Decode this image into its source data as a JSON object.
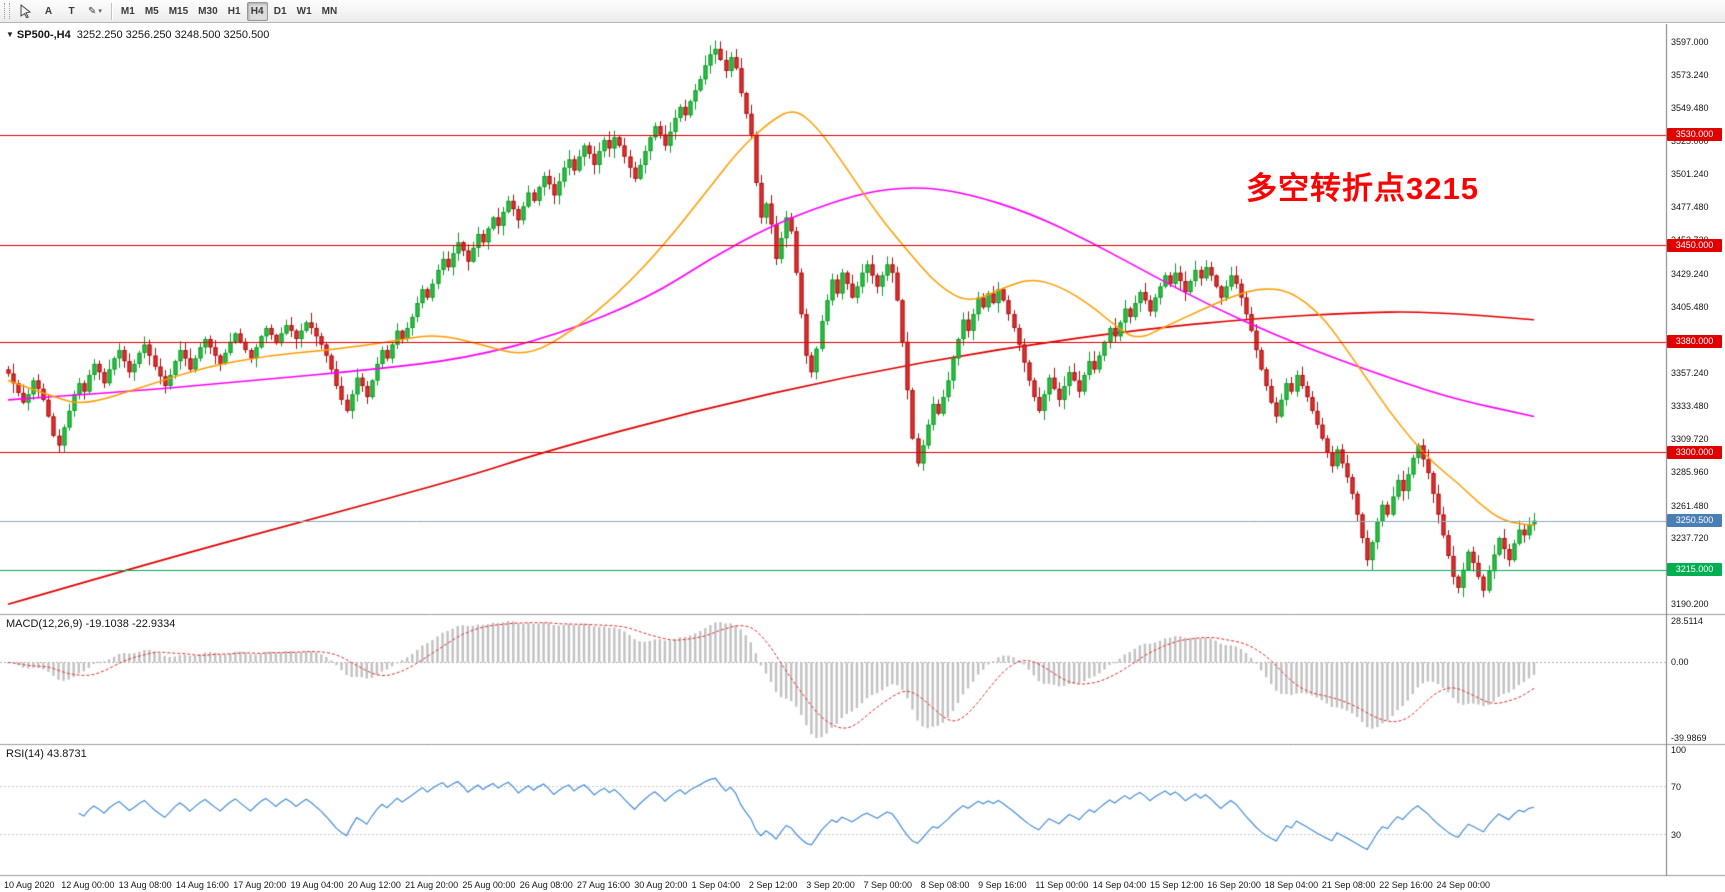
{
  "toolbar": {
    "text_tool_label": "A",
    "label_tool_label": "T",
    "draw_tool_glyph": "✎",
    "dropdown_caret": "▾",
    "timeframes": [
      "M1",
      "M5",
      "M15",
      "M30",
      "H1",
      "H4",
      "D1",
      "W1",
      "MN"
    ],
    "active_timeframe": "H4"
  },
  "chart": {
    "title_marker": "▼",
    "symbol_period": "SP500-,H4",
    "ohlc_text": "3252.250 3256.250 3248.500 3250.500",
    "annotation": {
      "text": "多空转折点3215",
      "color": "#ff0000"
    }
  },
  "colors": {
    "up_fill": "#30c245",
    "up_edge": "#0f9c2c",
    "down_fill": "#e43030",
    "down_edge": "#a81414",
    "ma_fast": "#ff9d00",
    "ma_mid": "#ff00ff",
    "ma_slow": "#e00000",
    "hline_red": "#e00000",
    "hline_green": "#00b050",
    "price_line": "#8fa8c0",
    "price_badge": "#4a7fb5",
    "macd_hist": "#c2c2c2",
    "macd_signal": "#e03030",
    "rsi_line": "#4a90d9",
    "rsi_level": "#cccccc",
    "separator": "#9e9e9e",
    "axis_line": "#7a7a7a",
    "zero_line": "#b0b0b0"
  },
  "chart_data": {
    "type": "candlestick",
    "symbol": "SP500-",
    "period": "H4",
    "ylim": [
      3183,
      3610
    ],
    "first_open": 3360,
    "closes": [
      3357,
      3350,
      3343,
      3336,
      3342,
      3352,
      3346,
      3338,
      3326,
      3312,
      3305,
      3318,
      3330,
      3342,
      3350,
      3344,
      3356,
      3364,
      3358,
      3350,
      3360,
      3368,
      3374,
      3366,
      3358,
      3364,
      3372,
      3378,
      3370,
      3362,
      3355,
      3348,
      3356,
      3366,
      3374,
      3368,
      3360,
      3368,
      3376,
      3382,
      3376,
      3370,
      3364,
      3372,
      3380,
      3386,
      3380,
      3374,
      3368,
      3376,
      3384,
      3390,
      3385,
      3379,
      3386,
      3392,
      3388,
      3382,
      3388,
      3394,
      3390,
      3384,
      3378,
      3370,
      3360,
      3348,
      3338,
      3330,
      3342,
      3354,
      3348,
      3340,
      3352,
      3364,
      3374,
      3368,
      3378,
      3388,
      3382,
      3390,
      3398,
      3408,
      3418,
      3412,
      3422,
      3432,
      3440,
      3434,
      3444,
      3452,
      3446,
      3438,
      3448,
      3458,
      3452,
      3462,
      3470,
      3464,
      3474,
      3482,
      3476,
      3468,
      3478,
      3488,
      3482,
      3492,
      3500,
      3494,
      3486,
      3496,
      3506,
      3512,
      3504,
      3514,
      3522,
      3516,
      3508,
      3518,
      3526,
      3520,
      3528,
      3522,
      3514,
      3506,
      3498,
      3508,
      3518,
      3528,
      3536,
      3530,
      3522,
      3532,
      3542,
      3550,
      3544,
      3554,
      3562,
      3570,
      3580,
      3588,
      3592,
      3584,
      3576,
      3586,
      3578,
      3560,
      3545,
      3530,
      3495,
      3470,
      3480,
      3465,
      3440,
      3455,
      3470,
      3460,
      3430,
      3400,
      3370,
      3358,
      3375,
      3395,
      3410,
      3425,
      3415,
      3430,
      3422,
      3412,
      3420,
      3430,
      3436,
      3428,
      3420,
      3428,
      3436,
      3430,
      3410,
      3380,
      3345,
      3310,
      3292,
      3305,
      3320,
      3335,
      3328,
      3340,
      3352,
      3368,
      3382,
      3396,
      3388,
      3400,
      3412,
      3405,
      3415,
      3408,
      3418,
      3410,
      3400,
      3390,
      3378,
      3365,
      3352,
      3340,
      3330,
      3342,
      3354,
      3346,
      3338,
      3348,
      3358,
      3352,
      3344,
      3356,
      3366,
      3360,
      3370,
      3380,
      3390,
      3384,
      3394,
      3404,
      3398,
      3408,
      3416,
      3410,
      3402,
      3412,
      3420,
      3428,
      3422,
      3430,
      3424,
      3416,
      3424,
      3432,
      3426,
      3434,
      3428,
      3420,
      3412,
      3420,
      3428,
      3422,
      3412,
      3400,
      3388,
      3374,
      3360,
      3348,
      3336,
      3326,
      3338,
      3350,
      3344,
      3356,
      3348,
      3340,
      3330,
      3320,
      3310,
      3300,
      3290,
      3302,
      3292,
      3282,
      3270,
      3255,
      3238,
      3222,
      3235,
      3250,
      3262,
      3255,
      3268,
      3280,
      3272,
      3284,
      3296,
      3305,
      3295,
      3285,
      3270,
      3255,
      3240,
      3225,
      3210,
      3202,
      3215,
      3228,
      3220,
      3210,
      3200,
      3214,
      3226,
      3238,
      3230,
      3222,
      3234,
      3244,
      3240,
      3248,
      3250.5
    ],
    "ma_lines": [
      {
        "name": "fast-ma",
        "color": "#ff9d00",
        "anchors": [
          [
            0,
            3352
          ],
          [
            0.03,
            3340
          ],
          [
            0.05,
            3334
          ],
          [
            0.09,
            3348
          ],
          [
            0.13,
            3362
          ],
          [
            0.17,
            3370
          ],
          [
            0.21,
            3374
          ],
          [
            0.25,
            3380
          ],
          [
            0.28,
            3386
          ],
          [
            0.31,
            3378
          ],
          [
            0.34,
            3369
          ],
          [
            0.37,
            3388
          ],
          [
            0.4,
            3415
          ],
          [
            0.43,
            3450
          ],
          [
            0.46,
            3492
          ],
          [
            0.48,
            3520
          ],
          [
            0.5,
            3540
          ],
          [
            0.515,
            3549
          ],
          [
            0.53,
            3536
          ],
          [
            0.55,
            3505
          ],
          [
            0.57,
            3472
          ],
          [
            0.59,
            3445
          ],
          [
            0.61,
            3420
          ],
          [
            0.63,
            3408
          ],
          [
            0.65,
            3418
          ],
          [
            0.67,
            3426
          ],
          [
            0.69,
            3420
          ],
          [
            0.71,
            3406
          ],
          [
            0.725,
            3392
          ],
          [
            0.74,
            3381
          ],
          [
            0.76,
            3392
          ],
          [
            0.78,
            3402
          ],
          [
            0.8,
            3412
          ],
          [
            0.82,
            3419
          ],
          [
            0.84,
            3417
          ],
          [
            0.86,
            3400
          ],
          [
            0.875,
            3378
          ],
          [
            0.89,
            3354
          ],
          [
            0.905,
            3330
          ],
          [
            0.92,
            3309
          ],
          [
            0.935,
            3291
          ],
          [
            0.95,
            3278
          ],
          [
            0.965,
            3262
          ],
          [
            0.98,
            3250
          ],
          [
            1,
            3247
          ]
        ]
      },
      {
        "name": "mid-ma",
        "color": "#ff00ff",
        "anchors": [
          [
            0,
            3338
          ],
          [
            0.08,
            3344
          ],
          [
            0.16,
            3352
          ],
          [
            0.24,
            3360
          ],
          [
            0.3,
            3368
          ],
          [
            0.36,
            3385
          ],
          [
            0.42,
            3412
          ],
          [
            0.46,
            3440
          ],
          [
            0.5,
            3464
          ],
          [
            0.54,
            3481
          ],
          [
            0.57,
            3490
          ],
          [
            0.6,
            3492
          ],
          [
            0.63,
            3487
          ],
          [
            0.67,
            3473
          ],
          [
            0.71,
            3452
          ],
          [
            0.75,
            3428
          ],
          [
            0.79,
            3405
          ],
          [
            0.83,
            3385
          ],
          [
            0.87,
            3368
          ],
          [
            0.91,
            3352
          ],
          [
            0.95,
            3338
          ],
          [
            1,
            3326
          ]
        ]
      },
      {
        "name": "slow-ma",
        "color": "#e00000",
        "anchors": [
          [
            0,
            3190
          ],
          [
            0.1,
            3222
          ],
          [
            0.2,
            3252
          ],
          [
            0.3,
            3282
          ],
          [
            0.35,
            3300
          ],
          [
            0.45,
            3330
          ],
          [
            0.55,
            3355
          ],
          [
            0.65,
            3375
          ],
          [
            0.75,
            3390
          ],
          [
            0.82,
            3397
          ],
          [
            0.88,
            3401
          ],
          [
            0.93,
            3402
          ],
          [
            1,
            3396
          ]
        ]
      }
    ],
    "hlines": [
      {
        "value": 3530,
        "label": "3530.000",
        "color": "#e00000"
      },
      {
        "value": 3450,
        "label": "3450.000",
        "color": "#e00000"
      },
      {
        "value": 3380,
        "label": "3380.000",
        "color": "#e00000"
      },
      {
        "value": 3300,
        "label": "3300.000",
        "color": "#e00000"
      },
      {
        "value": 3215,
        "label": "3215.000",
        "color": "#00b050"
      }
    ],
    "price_line": {
      "value": 3250.5,
      "label": "3250.500"
    },
    "y_ticks": [
      "3597.000",
      "3573.240",
      "3549.480",
      "3525.000",
      "3501.240",
      "3477.480",
      "3453.720",
      "3429.240",
      "3405.480",
      "3381.720",
      "3357.240",
      "3333.480",
      "3309.720",
      "3285.960",
      "3261.480",
      "3237.720",
      "3213.960",
      "3190.200"
    ],
    "x_labels": [
      "10 Aug 2020",
      "12 Aug 00:00",
      "13 Aug 08:00",
      "14 Aug 16:00",
      "17 Aug 20:00",
      "19 Aug 04:00",
      "20 Aug 12:00",
      "21 Aug 20:00",
      "25 Aug 00:00",
      "26 Aug 08:00",
      "27 Aug 16:00",
      "30 Aug 20:00",
      "1 Sep 04:00",
      "2 Sep 12:00",
      "3 Sep 20:00",
      "7 Sep 00:00",
      "8 Sep 08:00",
      "9 Sep 16:00",
      "11 Sep 00:00",
      "14 Sep 04:00",
      "15 Sep 12:00",
      "16 Sep 20:00",
      "18 Sep 04:00",
      "21 Sep 08:00",
      "22 Sep 16:00",
      "24 Sep 00:00"
    ],
    "macd": {
      "label": "MACD(12,26,9) -19.1038 -22.9334",
      "params": [
        12,
        26,
        9
      ],
      "axis": [
        {
          "label": "28.5114",
          "anchor": "max"
        },
        {
          "label": "0.00",
          "anchor": "zero"
        },
        {
          "label": "-39.9869",
          "anchor": "min"
        }
      ]
    },
    "rsi": {
      "label": "RSI(14) 43.8731",
      "period": 14,
      "levels": [
        70,
        30
      ],
      "axis": [
        {
          "label": "100",
          "value": 100
        },
        {
          "label": "70",
          "value": 70
        },
        {
          "label": "30",
          "value": 30
        }
      ]
    }
  }
}
